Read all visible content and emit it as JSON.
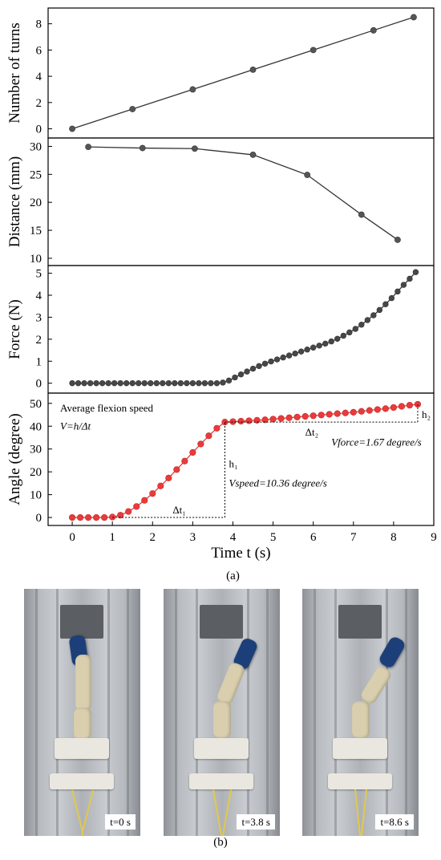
{
  "chart_data": [
    {
      "type": "line",
      "ylabel": "Number of turns",
      "x": [
        0,
        1.5,
        3,
        4.5,
        6,
        7.5,
        8.5
      ],
      "y": [
        0,
        1.5,
        3,
        4.5,
        6,
        7.5,
        8.5
      ],
      "xlim": [
        -0.6,
        9
      ],
      "ylim": [
        -0.7,
        9.2
      ],
      "yticks": [
        0,
        2,
        4,
        6,
        8
      ],
      "marker_color": "#555555",
      "line_color": "#333333"
    },
    {
      "type": "line",
      "ylabel": "Distance (mm)",
      "x": [
        0.4,
        1.75,
        3.05,
        4.5,
        5.85,
        7.2,
        8.1
      ],
      "y": [
        29.9,
        29.7,
        29.6,
        28.5,
        24.9,
        17.8,
        13.3
      ],
      "xlim": [
        -0.6,
        9
      ],
      "ylim": [
        8.7,
        31.5
      ],
      "yticks": [
        10,
        15,
        20,
        25,
        30
      ],
      "marker_color": "#555555",
      "line_color": "#333333"
    },
    {
      "type": "line",
      "ylabel": "Force (N)",
      "x": [
        0,
        0.15,
        0.3,
        0.45,
        0.6,
        0.75,
        0.9,
        1.05,
        1.2,
        1.35,
        1.5,
        1.65,
        1.8,
        1.95,
        2.1,
        2.25,
        2.4,
        2.55,
        2.7,
        2.85,
        3.0,
        3.15,
        3.3,
        3.45,
        3.6,
        3.75,
        3.9,
        4.05,
        4.2,
        4.35,
        4.5,
        4.65,
        4.8,
        4.95,
        5.1,
        5.25,
        5.4,
        5.55,
        5.7,
        5.85,
        6.0,
        6.15,
        6.3,
        6.45,
        6.6,
        6.75,
        6.9,
        7.05,
        7.2,
        7.35,
        7.5,
        7.65,
        7.8,
        7.95,
        8.1,
        8.25,
        8.4,
        8.55
      ],
      "y": [
        0,
        0,
        0,
        0,
        0,
        0,
        0,
        0,
        0,
        0,
        0,
        0,
        0,
        0,
        0,
        0,
        0,
        0,
        0,
        0,
        0,
        0,
        0,
        0,
        0,
        0.03,
        0.12,
        0.26,
        0.4,
        0.53,
        0.66,
        0.78,
        0.89,
        0.99,
        1.08,
        1.17,
        1.26,
        1.35,
        1.44,
        1.53,
        1.62,
        1.71,
        1.8,
        1.9,
        2.02,
        2.16,
        2.31,
        2.47,
        2.66,
        2.87,
        3.09,
        3.33,
        3.59,
        3.87,
        4.17,
        4.47,
        4.75,
        5.05
      ],
      "xlim": [
        -0.6,
        9
      ],
      "ylim": [
        -0.45,
        5.35
      ],
      "yticks": [
        0,
        1,
        2,
        3,
        4,
        5
      ],
      "marker_color": "#474747",
      "line_color": "#333333"
    },
    {
      "type": "line",
      "ylabel": "Angle (degree)",
      "xlabel": "Time t (s)",
      "x": [
        0,
        0.2,
        0.4,
        0.6,
        0.8,
        1.0,
        1.2,
        1.4,
        1.6,
        1.8,
        2.0,
        2.2,
        2.4,
        2.6,
        2.8,
        3.0,
        3.2,
        3.4,
        3.6,
        3.8,
        4.0,
        4.2,
        4.4,
        4.6,
        4.8,
        5.0,
        5.2,
        5.4,
        5.6,
        5.8,
        6.0,
        6.2,
        6.4,
        6.6,
        6.8,
        7.0,
        7.2,
        7.4,
        7.6,
        7.8,
        8.0,
        8.2,
        8.4,
        8.6
      ],
      "y": [
        0,
        0,
        0,
        0,
        0,
        0.2,
        1,
        2.6,
        4.8,
        7.5,
        10.5,
        13.8,
        17.3,
        21,
        24.7,
        28.5,
        32.2,
        35.8,
        39.1,
        41.8,
        42,
        42.2,
        42.4,
        42.6,
        42.8,
        43.1,
        43.4,
        43.7,
        44,
        44.3,
        44.6,
        44.9,
        45.2,
        45.5,
        45.8,
        46.1,
        46.5,
        46.9,
        47.3,
        47.7,
        48.2,
        48.7,
        49.2,
        49.6
      ],
      "xlim": [
        -0.6,
        9
      ],
      "ylim": [
        -3.5,
        54.5
      ],
      "yticks": [
        0,
        10,
        20,
        30,
        40,
        50
      ],
      "xticks": [
        0,
        1,
        2,
        3,
        4,
        5,
        6,
        7,
        8,
        9
      ],
      "marker_color": "#e83b3b",
      "line_color": "#e83b3b",
      "annotations": {
        "line1": "Average flexion speed",
        "line2": "V=h/Δt",
        "dt1": "Δt₁",
        "h1": "h₁",
        "vspeed": "Vspeed=10.36 degree/s",
        "dt2": "Δt₂",
        "h2": "h₂",
        "vforce": "Vforce=1.67 degree/s"
      }
    }
  ],
  "sublabel_a": "(a)",
  "sublabel_b": "(b)",
  "photos": [
    {
      "label": "t=0 s"
    },
    {
      "label": "t=3.8 s"
    },
    {
      "label": "t=8.6 s"
    }
  ]
}
